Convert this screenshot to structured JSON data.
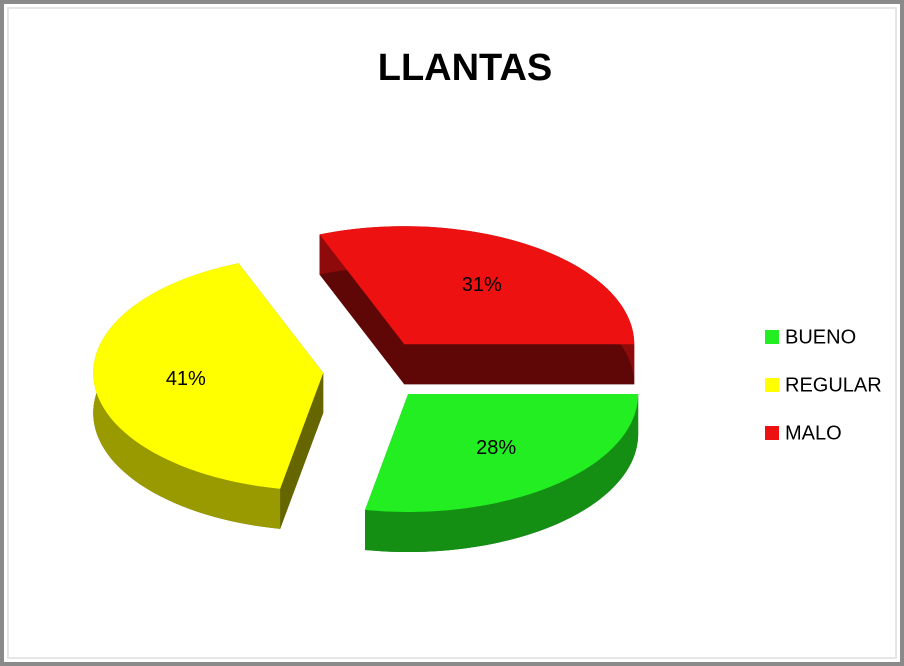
{
  "chart_data": {
    "type": "pie",
    "title": "LLANTAS",
    "categories": [
      "BUENO",
      "REGULAR",
      "MALO"
    ],
    "values": [
      28,
      41,
      31
    ],
    "value_labels": [
      "28%",
      "41%",
      "31%"
    ],
    "colors": [
      "#22ee22",
      "#ffff00",
      "#ee1111"
    ],
    "legend": "right"
  }
}
